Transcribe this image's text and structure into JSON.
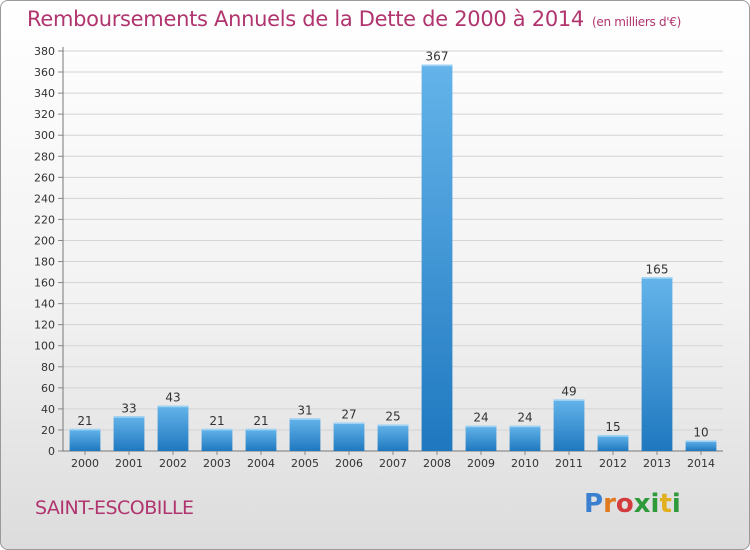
{
  "title": "Remboursements Annuels de la Dette de 2000 à 2014",
  "subtitle": "(en milliers d'€)",
  "commune": "SAINT-ESCOBILLE",
  "logo": {
    "letters": [
      "P",
      "r",
      "o",
      "x",
      "i",
      "t",
      "i"
    ],
    "colors": [
      "#3a7fd0",
      "#e07a1f",
      "#d23c3c",
      "#2e9a3a",
      "#2e9a3a",
      "#e0b01f",
      "#2e9a3a"
    ]
  },
  "colors": {
    "bar_top": "#64b4ea",
    "bar_bottom": "#1f78bf",
    "title": "#b0356e"
  },
  "chart_data": {
    "type": "bar",
    "categories": [
      "2000",
      "2001",
      "2002",
      "2003",
      "2004",
      "2005",
      "2006",
      "2007",
      "2008",
      "2009",
      "2010",
      "2011",
      "2012",
      "2013",
      "2014"
    ],
    "values": [
      21,
      33,
      43,
      21,
      21,
      31,
      27,
      25,
      367,
      24,
      24,
      49,
      15,
      165,
      10
    ],
    "data_labels": [
      "21",
      "33",
      "43",
      "21",
      "21",
      "31",
      "27",
      "25",
      "367",
      "24",
      "24",
      "49",
      "15",
      "165",
      "10"
    ],
    "title": "Remboursements Annuels de la Dette de 2000 à 2014",
    "subtitle": "(en milliers d'€)",
    "xlabel": "",
    "ylabel": "",
    "ylim": [
      0,
      380
    ],
    "yticks": [
      0,
      20,
      40,
      60,
      80,
      100,
      120,
      140,
      160,
      180,
      200,
      220,
      240,
      260,
      280,
      300,
      320,
      340,
      360,
      380
    ],
    "grid": true,
    "legend": "none"
  }
}
